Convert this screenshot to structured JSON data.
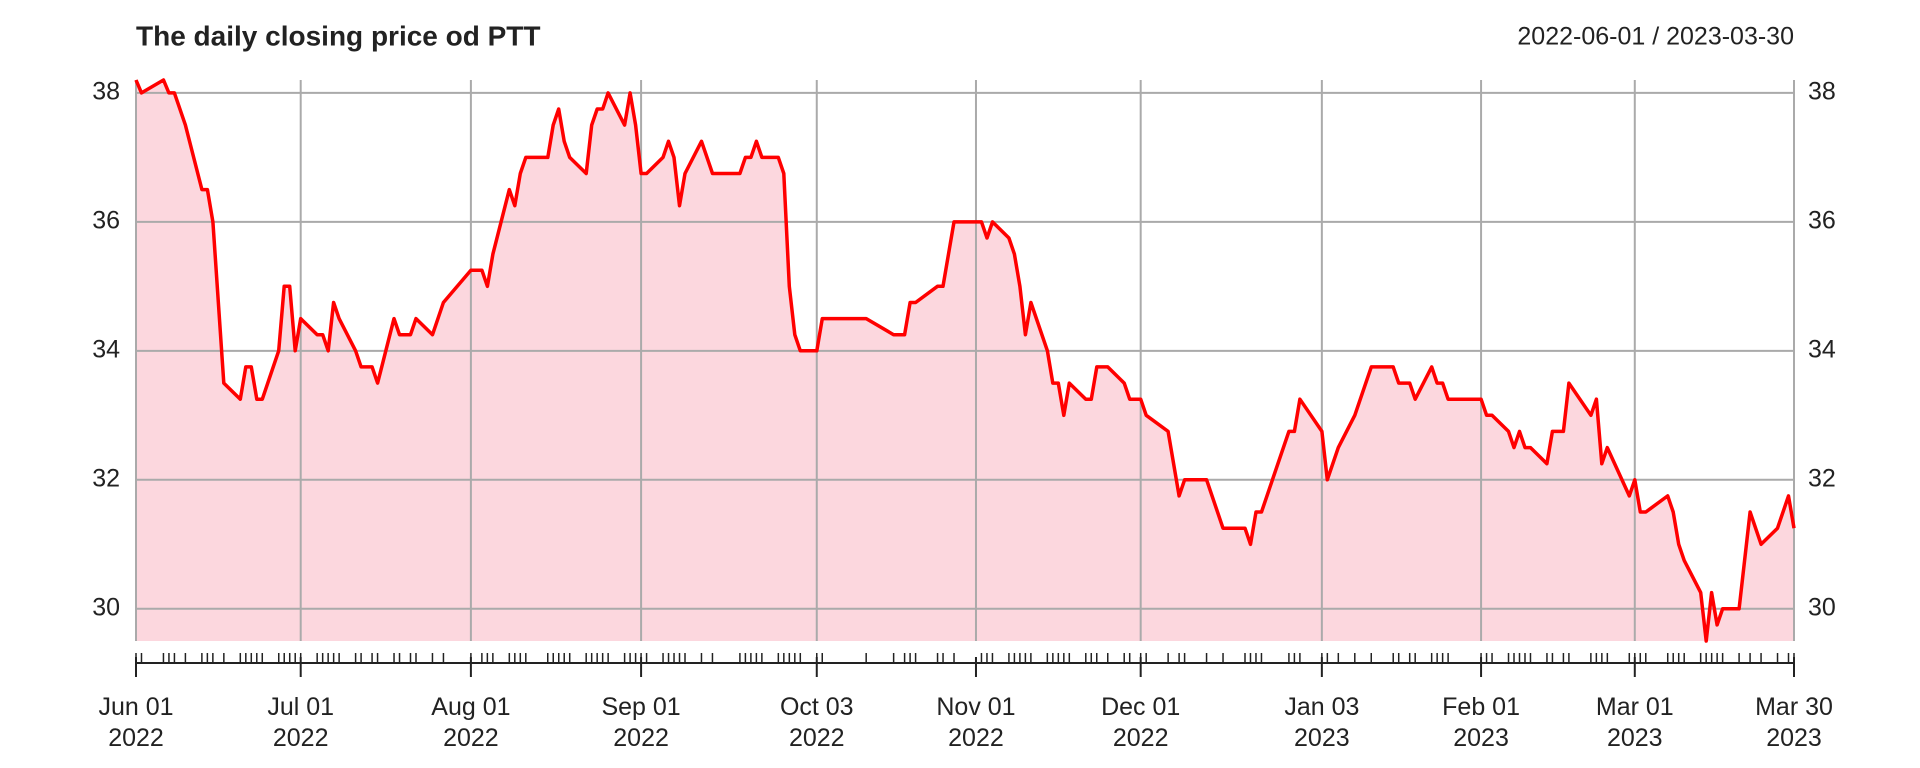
{
  "chart_data": {
    "type": "line",
    "title": "The daily closing price od PTT",
    "subtitle": "2022-06-01 / 2023-03-30",
    "color": "#ff0000",
    "fill": "#fcd7de",
    "grid": true,
    "xlim": [
      "2022-06-01",
      "2023-03-30"
    ],
    "ylim": [
      29.5,
      38.2
    ],
    "yticks": [
      30,
      32,
      34,
      36,
      38
    ],
    "xticks": [
      {
        "value": "2022-06-01",
        "label": [
          "Jun 01",
          "2022"
        ]
      },
      {
        "value": "2022-07-01",
        "label": [
          "Jul 01",
          "2022"
        ]
      },
      {
        "value": "2022-08-01",
        "label": [
          "Aug 01",
          "2022"
        ]
      },
      {
        "value": "2022-09-01",
        "label": [
          "Sep 01",
          "2022"
        ]
      },
      {
        "value": "2022-10-03",
        "label": [
          "Oct 03",
          "2022"
        ]
      },
      {
        "value": "2022-11-01",
        "label": [
          "Nov 01",
          "2022"
        ]
      },
      {
        "value": "2022-12-01",
        "label": [
          "Dec 01",
          "2022"
        ]
      },
      {
        "value": "2023-01-03",
        "label": [
          "Jan 03",
          "2023"
        ]
      },
      {
        "value": "2023-02-01",
        "label": [
          "Feb 01",
          "2023"
        ]
      },
      {
        "value": "2023-03-01",
        "label": [
          "Mar 01",
          "2023"
        ]
      },
      {
        "value": "2023-03-30",
        "label": [
          "Mar 30",
          "2023"
        ]
      }
    ],
    "x": [
      "2022-06-01",
      "2022-06-02",
      "2022-06-06",
      "2022-06-07",
      "2022-06-08",
      "2022-06-10",
      "2022-06-13",
      "2022-06-14",
      "2022-06-15",
      "2022-06-17",
      "2022-06-20",
      "2022-06-21",
      "2022-06-22",
      "2022-06-23",
      "2022-06-24",
      "2022-06-27",
      "2022-06-28",
      "2022-06-29",
      "2022-06-30",
      "2022-07-01",
      "2022-07-04",
      "2022-07-05",
      "2022-07-06",
      "2022-07-07",
      "2022-07-08",
      "2022-07-11",
      "2022-07-12",
      "2022-07-14",
      "2022-07-15",
      "2022-07-18",
      "2022-07-19",
      "2022-07-21",
      "2022-07-22",
      "2022-07-25",
      "2022-07-27",
      "2022-08-01",
      "2022-08-03",
      "2022-08-04",
      "2022-08-05",
      "2022-08-08",
      "2022-08-09",
      "2022-08-10",
      "2022-08-11",
      "2022-08-15",
      "2022-08-16",
      "2022-08-17",
      "2022-08-18",
      "2022-08-19",
      "2022-08-22",
      "2022-08-23",
      "2022-08-24",
      "2022-08-25",
      "2022-08-26",
      "2022-08-29",
      "2022-08-30",
      "2022-08-31",
      "2022-09-01",
      "2022-09-02",
      "2022-09-05",
      "2022-09-06",
      "2022-09-07",
      "2022-09-08",
      "2022-09-09",
      "2022-09-12",
      "2022-09-14",
      "2022-09-19",
      "2022-09-20",
      "2022-09-21",
      "2022-09-22",
      "2022-09-23",
      "2022-09-26",
      "2022-09-27",
      "2022-09-28",
      "2022-09-29",
      "2022-09-30",
      "2022-10-03",
      "2022-10-04",
      "2022-10-12",
      "2022-10-17",
      "2022-10-19",
      "2022-10-20",
      "2022-10-21",
      "2022-10-25",
      "2022-10-26",
      "2022-10-28",
      "2022-11-02",
      "2022-11-03",
      "2022-11-04",
      "2022-11-07",
      "2022-11-08",
      "2022-11-09",
      "2022-11-10",
      "2022-11-11",
      "2022-11-14",
      "2022-11-15",
      "2022-11-16",
      "2022-11-17",
      "2022-11-18",
      "2022-11-21",
      "2022-11-22",
      "2022-11-23",
      "2022-11-25",
      "2022-11-28",
      "2022-11-29",
      "2022-12-01",
      "2022-12-02",
      "2022-12-06",
      "2022-12-08",
      "2022-12-09",
      "2022-12-13",
      "2022-12-16",
      "2022-12-20",
      "2022-12-21",
      "2022-12-22",
      "2022-12-23",
      "2022-12-28",
      "2022-12-29",
      "2022-12-30",
      "2023-01-03",
      "2023-01-04",
      "2023-01-06",
      "2023-01-09",
      "2023-01-12",
      "2023-01-16",
      "2023-01-17",
      "2023-01-19",
      "2023-01-20",
      "2023-01-23",
      "2023-01-24",
      "2023-01-25",
      "2023-01-26",
      "2023-02-01",
      "2023-02-02",
      "2023-02-03",
      "2023-02-06",
      "2023-02-07",
      "2023-02-08",
      "2023-02-09",
      "2023-02-10",
      "2023-02-13",
      "2023-02-14",
      "2023-02-16",
      "2023-02-17",
      "2023-02-21",
      "2023-02-22",
      "2023-02-23",
      "2023-02-24",
      "2023-02-28",
      "2023-03-01",
      "2023-03-02",
      "2023-03-03",
      "2023-03-07",
      "2023-03-08",
      "2023-03-09",
      "2023-03-10",
      "2023-03-13",
      "2023-03-14",
      "2023-03-15",
      "2023-03-16",
      "2023-03-17",
      "2023-03-20",
      "2023-03-22",
      "2023-03-24",
      "2023-03-27",
      "2023-03-29",
      "2023-03-30"
    ],
    "values": [
      38.2,
      38.0,
      38.2,
      38.0,
      38.0,
      37.5,
      36.5,
      36.5,
      36.0,
      33.5,
      33.25,
      33.75,
      33.75,
      33.25,
      33.25,
      34.0,
      35.0,
      35.0,
      34.0,
      34.5,
      34.25,
      34.25,
      34.0,
      34.75,
      34.5,
      34.0,
      33.75,
      33.75,
      33.5,
      34.5,
      34.25,
      34.25,
      34.5,
      34.25,
      34.75,
      35.25,
      35.25,
      35.0,
      35.5,
      36.5,
      36.25,
      36.75,
      37.0,
      37.0,
      37.5,
      37.75,
      37.25,
      37.0,
      36.75,
      37.5,
      37.75,
      37.75,
      38.0,
      37.5,
      38.0,
      37.5,
      36.75,
      36.75,
      37.0,
      37.25,
      37.0,
      36.25,
      36.75,
      37.25,
      36.75,
      36.75,
      37.0,
      37.0,
      37.25,
      37.0,
      37.0,
      36.75,
      35.0,
      34.25,
      34.0,
      34.0,
      34.5,
      34.5,
      34.25,
      34.25,
      34.75,
      34.75,
      35.0,
      35.0,
      36.0,
      36.0,
      35.75,
      36.0,
      35.75,
      35.5,
      35.0,
      34.25,
      34.75,
      34.0,
      33.5,
      33.5,
      33.0,
      33.5,
      33.25,
      33.25,
      33.75,
      33.75,
      33.5,
      33.25,
      33.25,
      33.0,
      32.75,
      31.75,
      32.0,
      32.0,
      31.25,
      31.25,
      31.0,
      31.5,
      31.5,
      32.75,
      32.75,
      33.25,
      32.75,
      32.0,
      32.5,
      33.0,
      33.75,
      33.75,
      33.5,
      33.5,
      33.25,
      33.75,
      33.5,
      33.5,
      33.25,
      33.25,
      33.0,
      33.0,
      32.75,
      32.5,
      32.75,
      32.5,
      32.5,
      32.25,
      32.75,
      32.75,
      33.5,
      33.0,
      33.25,
      32.25,
      32.5,
      31.75,
      32.0,
      31.5,
      31.5,
      31.75,
      31.5,
      31.0,
      30.75,
      30.25,
      29.5,
      30.25,
      29.75,
      30.0,
      30.0,
      31.5,
      31.0,
      31.25,
      31.75,
      31.25
    ]
  }
}
